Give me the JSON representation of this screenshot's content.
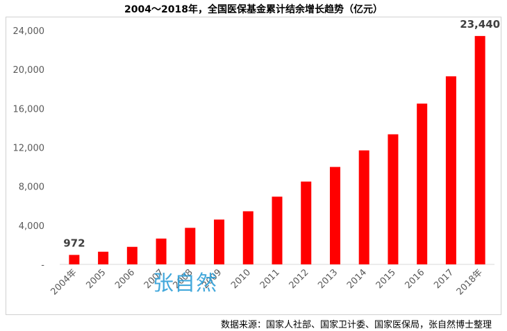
{
  "chart_data": {
    "type": "bar",
    "title": "2004～2018年，全国医保基金累计结余增长趋势（亿元）",
    "categories": [
      "2004年",
      "2005",
      "2006",
      "2007",
      "2008",
      "2009",
      "2010",
      "2011",
      "2012",
      "2013",
      "2014",
      "2015",
      "2016",
      "2017",
      "2018年"
    ],
    "values": [
      972,
      1300,
      1800,
      2650,
      3750,
      4600,
      5450,
      6950,
      8500,
      10000,
      11700,
      13350,
      16500,
      19300,
      23440
    ],
    "ylim": [
      0,
      24000
    ],
    "yticks": [
      0,
      4000,
      8000,
      12000,
      16000,
      20000,
      24000
    ],
    "ytick_labels": [
      "-",
      "4,000",
      "8,000",
      "12,000",
      "16,000",
      "20,000",
      "24,000"
    ],
    "data_labels": [
      {
        "index": 0,
        "text": "972"
      },
      {
        "index": 14,
        "text": "23,440"
      }
    ],
    "grid": false,
    "bar_color": "#ff0000"
  },
  "watermark": "张自然",
  "source": "数据来源：国家人社部、国家卫计委、国家医保局，张自然博士整理"
}
